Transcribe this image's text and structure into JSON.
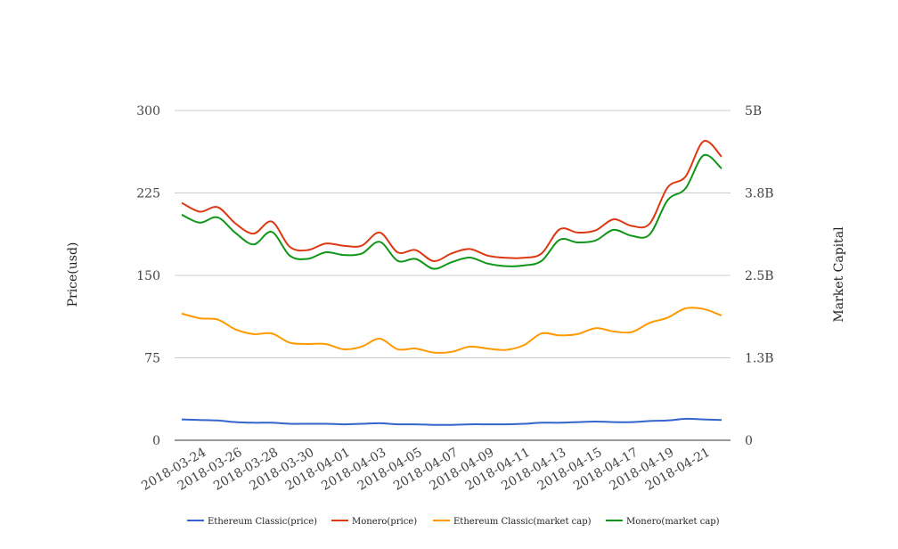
{
  "chart_data": {
    "type": "line",
    "title": "",
    "ylabel_left": "Price(usd)",
    "ylabel_right": "Market Capital",
    "y_left_ticks": [
      "0",
      "75",
      "150",
      "225",
      "300"
    ],
    "y_right_ticks": [
      "0",
      "1.3B",
      "2.5B",
      "3.8B",
      "5B"
    ],
    "ylim_left": [
      0,
      300
    ],
    "ylim_right": [
      0,
      5000000000
    ],
    "x_tick_labels": [
      "2018-03-24",
      "2018-03-26",
      "2018-03-28",
      "2018-03-30",
      "2018-04-01",
      "2018-04-03",
      "2018-04-05",
      "2018-04-07",
      "2018-04-09",
      "2018-04-11",
      "2018-04-13",
      "2018-04-15",
      "2018-04-17",
      "2018-04-19",
      "2018-04-21"
    ],
    "x": [
      "2018-03-23",
      "2018-03-24",
      "2018-03-25",
      "2018-03-26",
      "2018-03-27",
      "2018-03-28",
      "2018-03-29",
      "2018-03-30",
      "2018-03-31",
      "2018-04-01",
      "2018-04-02",
      "2018-04-03",
      "2018-04-04",
      "2018-04-05",
      "2018-04-06",
      "2018-04-07",
      "2018-04-08",
      "2018-04-09",
      "2018-04-10",
      "2018-04-11",
      "2018-04-12",
      "2018-04-13",
      "2018-04-14",
      "2018-04-15",
      "2018-04-16",
      "2018-04-17",
      "2018-04-18",
      "2018-04-19",
      "2018-04-20",
      "2018-04-21",
      "2018-04-22"
    ],
    "grid": true,
    "legend_position": "bottom",
    "series": [
      {
        "name": "Ethereum Classic(price)",
        "axis": "left",
        "color": "#3366cc",
        "values": [
          19,
          18.5,
          18,
          16.5,
          16,
          16,
          15,
          15,
          15,
          14.5,
          15,
          15.5,
          14.5,
          14.5,
          14,
          14,
          14.5,
          14.5,
          14.5,
          15,
          16,
          16,
          16.5,
          17,
          16.5,
          16.5,
          17.5,
          18,
          19.5,
          19,
          18.5
        ]
      },
      {
        "name": "Monero(price)",
        "axis": "left",
        "color": "#dc3912",
        "values": [
          216,
          208,
          212,
          197,
          188,
          199,
          176,
          173,
          179,
          177,
          177,
          189,
          171,
          173,
          163,
          170,
          174,
          168,
          166,
          166,
          170,
          192,
          189,
          191,
          201,
          195,
          197,
          230,
          240,
          272,
          258
        ]
      },
      {
        "name": "Ethereum Classic(market cap)",
        "axis": "right",
        "color": "#ff9900",
        "values": [
          1920000000,
          1850000000,
          1830000000,
          1680000000,
          1610000000,
          1620000000,
          1480000000,
          1460000000,
          1460000000,
          1380000000,
          1420000000,
          1540000000,
          1380000000,
          1390000000,
          1330000000,
          1340000000,
          1420000000,
          1390000000,
          1370000000,
          1440000000,
          1620000000,
          1590000000,
          1610000000,
          1700000000,
          1650000000,
          1640000000,
          1780000000,
          1860000000,
          2000000000,
          1990000000,
          1890000000
        ]
      },
      {
        "name": "Monero(market cap)",
        "axis": "right",
        "color": "#109618",
        "values": [
          3420000000,
          3300000000,
          3380000000,
          3140000000,
          2970000000,
          3160000000,
          2800000000,
          2750000000,
          2850000000,
          2810000000,
          2830000000,
          3010000000,
          2720000000,
          2750000000,
          2600000000,
          2700000000,
          2770000000,
          2680000000,
          2640000000,
          2650000000,
          2720000000,
          3040000000,
          3000000000,
          3030000000,
          3190000000,
          3100000000,
          3120000000,
          3640000000,
          3820000000,
          4320000000,
          4120000000
        ]
      }
    ]
  }
}
